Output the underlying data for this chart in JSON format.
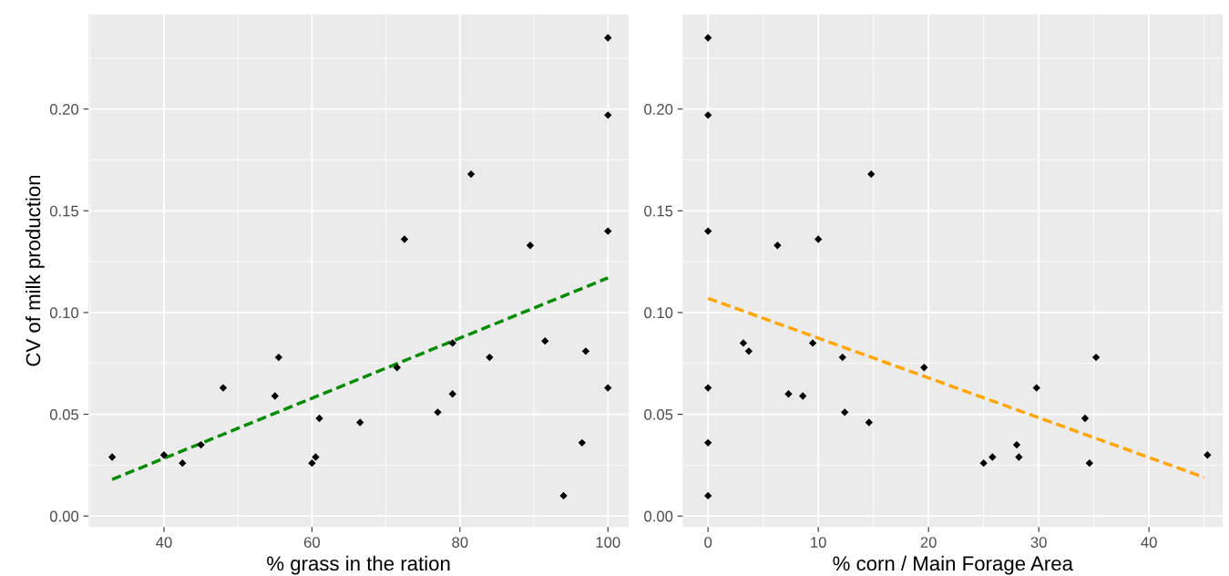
{
  "chart_data": [
    {
      "type": "scatter",
      "xlabel": "% grass in the ration",
      "ylabel": "CV of milk production",
      "xlim": [
        29.8,
        102.8
      ],
      "ylim": [
        -0.0054,
        0.2465
      ],
      "xticks": [
        40,
        60,
        80,
        100
      ],
      "yticks": [
        {
          "value": 0,
          "label": "0.00"
        },
        {
          "value": 0.05,
          "label": "0.05"
        },
        {
          "value": 0.1,
          "label": "0.10"
        },
        {
          "value": 0.15,
          "label": "0.15"
        },
        {
          "value": 0.2,
          "label": "0.20"
        }
      ],
      "grid": true,
      "series": [
        {
          "marker": "diamond",
          "color": "#000000",
          "x": [
            33,
            40,
            42.5,
            45,
            48,
            55,
            55.5,
            60,
            60.5,
            61,
            66.5,
            71.5,
            72.5,
            77,
            79,
            79,
            81.5,
            84,
            89.5,
            91.5,
            94,
            96.5,
            97,
            100,
            100,
            100,
            100
          ],
          "values": [
            0.029,
            0.03,
            0.026,
            0.035,
            0.063,
            0.059,
            0.078,
            0.026,
            0.029,
            0.048,
            0.046,
            0.073,
            0.136,
            0.051,
            0.085,
            0.06,
            0.168,
            0.078,
            0.133,
            0.086,
            0.01,
            0.036,
            0.081,
            0.235,
            0.197,
            0.14,
            0.063
          ]
        },
        {
          "type": "line",
          "line_style": "dashed",
          "color": "#008b00",
          "x": [
            33,
            100
          ],
          "values": [
            0.018,
            0.117
          ]
        }
      ]
    },
    {
      "type": "scatter",
      "xlabel": "% corn / Main Forage Area",
      "xlim": [
        -2.3,
        46.7
      ],
      "ylim": [
        -0.0054,
        0.2465
      ],
      "xticks": [
        0,
        10,
        20,
        30,
        40
      ],
      "yticks": [
        {
          "value": 0,
          "label": "0.00"
        },
        {
          "value": 0.05,
          "label": "0.05"
        },
        {
          "value": 0.1,
          "label": "0.10"
        },
        {
          "value": 0.15,
          "label": "0.15"
        },
        {
          "value": 0.2,
          "label": "0.20"
        }
      ],
      "grid": true,
      "series": [
        {
          "marker": "diamond",
          "color": "#000000",
          "x": [
            0,
            0,
            0,
            0,
            0,
            0,
            3.2,
            3.7,
            6.3,
            7.3,
            8.6,
            9.5,
            10,
            12.2,
            12.4,
            14.6,
            14.8,
            19.6,
            25,
            25.8,
            28,
            28.2,
            29.8,
            34.2,
            34.6,
            35.2,
            45.3
          ],
          "values": [
            0.235,
            0.197,
            0.14,
            0.063,
            0.036,
            0.01,
            0.085,
            0.081,
            0.133,
            0.06,
            0.059,
            0.085,
            0.136,
            0.078,
            0.051,
            0.046,
            0.168,
            0.073,
            0.026,
            0.029,
            0.035,
            0.029,
            0.063,
            0.048,
            0.026,
            0.078,
            0.03
          ]
        },
        {
          "type": "line",
          "line_style": "dashed",
          "color": "#ffa500",
          "x": [
            0,
            45
          ],
          "values": [
            0.107,
            0.019
          ]
        }
      ]
    }
  ]
}
